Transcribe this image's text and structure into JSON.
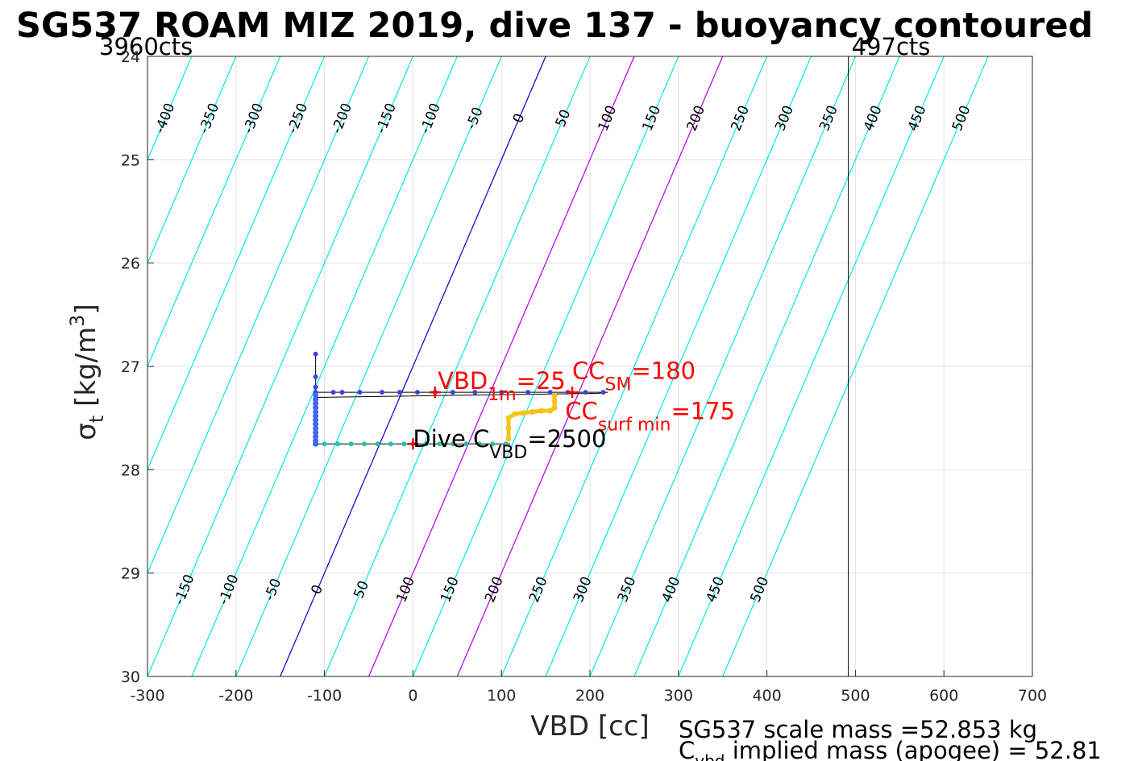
{
  "chart_data": {
    "type": "line",
    "title": "SG537 ROAM MIZ 2019, dive 137 - buoyancy contoured",
    "xlabel": "VBD [cc]",
    "ylabel_main": "σ",
    "ylabel_sub": "t",
    "ylabel_unit": " [kg/m",
    "ylabel_sup": "3",
    "ylabel_close": "]",
    "xlim": [
      -300,
      700
    ],
    "ylim": [
      24,
      30
    ],
    "y_reversed": true,
    "grid": true,
    "xticks": [
      -300,
      -200,
      -100,
      0,
      100,
      200,
      300,
      400,
      500,
      600,
      700
    ],
    "yticks": [
      24,
      25,
      26,
      27,
      28,
      29,
      30
    ],
    "contour_levels": [
      -400,
      -350,
      -300,
      -250,
      -200,
      -150,
      -100,
      -50,
      0,
      50,
      100,
      150,
      200,
      250,
      300,
      350,
      400,
      450,
      500
    ],
    "contour_colors": {
      "default": "#00e8e8",
      "zero": "#0000cc",
      "highlight": "#b000e0"
    },
    "highlight_levels": [
      100,
      200
    ],
    "contour_slope_cc_per_sigma": 100,
    "limit_lines": [
      {
        "x": -300,
        "label": "3960cts"
      },
      {
        "x": 492,
        "label": "497cts"
      }
    ],
    "markers": [
      {
        "x": 25,
        "y": 27.25,
        "color": "#ff0000"
      },
      {
        "x": 180,
        "y": 27.25,
        "color": "#ff0000"
      },
      {
        "x": 0,
        "y": 27.75,
        "color": "#ff0000"
      }
    ],
    "annotations": [
      {
        "main": "VBD",
        "sub": "1m",
        "post": "=25",
        "x": 28,
        "y": 27.22,
        "color": "#ff0000",
        "size": 29
      },
      {
        "main": "CC",
        "sub": "SM",
        "post": "=180",
        "x": 180,
        "y": 27.12,
        "color": "#ff0000",
        "size": 29
      },
      {
        "main": "CC",
        "sub": "surf min",
        "post": "=175",
        "x": 172,
        "y": 27.51,
        "color": "#ff0000",
        "size": 29
      },
      {
        "main": "Dive C",
        "sub": "VBD",
        "post": "=2500",
        "x": 0,
        "y": 27.78,
        "color": "#000000",
        "size": 29
      }
    ],
    "series": [
      {
        "type": "black-line",
        "x": [
          -110,
          -110,
          -110,
          -110,
          220,
          210,
          -110,
          -110,
          110
        ],
        "y": [
          26.88,
          27.1,
          27.2,
          27.25,
          27.25,
          27.26,
          27.3,
          27.75,
          27.75
        ]
      },
      {
        "type": "points-blue",
        "x": [
          -110,
          -110,
          -110,
          -110,
          -90,
          -80,
          -60,
          -35,
          -15,
          5,
          25,
          45,
          70,
          100,
          130,
          155,
          175,
          195,
          215
        ],
        "y": [
          26.88,
          27.1,
          27.2,
          27.25,
          27.25,
          27.25,
          27.25,
          27.25,
          27.25,
          27.25,
          27.25,
          27.25,
          27.25,
          27.25,
          27.25,
          27.25,
          27.25,
          27.25,
          27.25
        ]
      },
      {
        "type": "points-descent",
        "x": [
          -110,
          -110,
          -110,
          -110,
          -110,
          -110,
          -110,
          -110,
          -110,
          -110,
          -110,
          -110,
          -110
        ],
        "y": [
          27.28,
          27.32,
          27.36,
          27.4,
          27.44,
          27.48,
          27.52,
          27.56,
          27.6,
          27.64,
          27.68,
          27.72,
          27.75
        ]
      },
      {
        "type": "points-teal",
        "x": [
          -100,
          -85,
          -70,
          -55,
          -40,
          -25,
          -10,
          0,
          15,
          30,
          45,
          60,
          75,
          90,
          105
        ],
        "y": [
          27.75,
          27.75,
          27.75,
          27.75,
          27.75,
          27.75,
          27.75,
          27.75,
          27.75,
          27.75,
          27.75,
          27.75,
          27.75,
          27.75,
          27.75
        ]
      },
      {
        "type": "points-yellow",
        "x": [
          108,
          108,
          108,
          115,
          125,
          135,
          145,
          155,
          160,
          160,
          160
        ],
        "y": [
          27.7,
          27.6,
          27.5,
          27.46,
          27.45,
          27.44,
          27.43,
          27.43,
          27.4,
          27.34,
          27.28
        ]
      }
    ]
  },
  "footer": {
    "line1": "SG537 scale mass =52.853 kg",
    "line2_main": "C",
    "line2_sub": "vbd",
    "line2_post": " implied mass (apogee) = 52.81"
  }
}
